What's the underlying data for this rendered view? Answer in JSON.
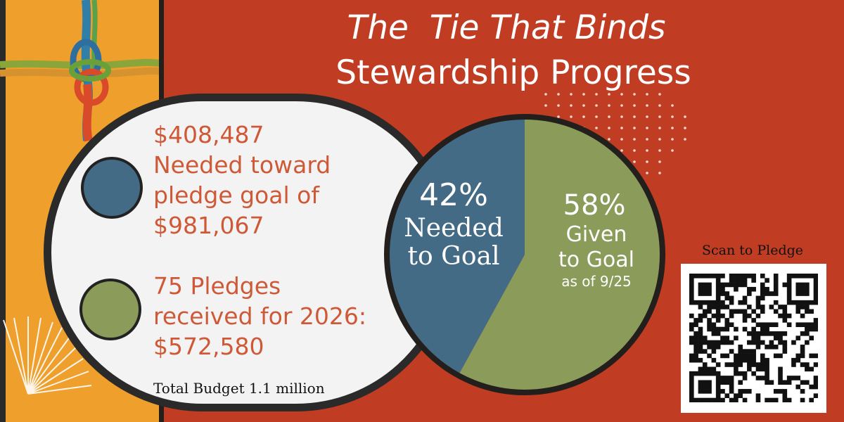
{
  "header": {
    "title_line1": "The  Tie That Binds",
    "title_line2": "Stewardship Progress"
  },
  "legend": {
    "needed": {
      "lines": [
        "$408,487",
        "Needed toward",
        "pledge goal of",
        "$981,067"
      ],
      "color": "#446b86"
    },
    "given": {
      "lines": [
        "75 Pledges",
        "received for 2026:",
        "$572,580"
      ],
      "color": "#8a9b5a"
    },
    "total_budget": "Total Budget 1.1 million"
  },
  "chart_data": {
    "type": "pie",
    "slices": [
      {
        "label": "Needed to Goal",
        "percent_label": "42%",
        "value": 42,
        "color": "#446b86"
      },
      {
        "label": "Given to Goal",
        "percent_label": "58%",
        "value": 58,
        "color": "#8a9b5a",
        "note": "as of 9/25"
      }
    ]
  },
  "pie_labels": {
    "needed_percent": "42%",
    "needed_caption_line1": "Needed",
    "needed_caption_line2": "to Goal",
    "given_percent": "58%",
    "given_caption_line1": "Given",
    "given_caption_line2": "to Goal",
    "as_of": "as of 9/25"
  },
  "qr": {
    "label": "Scan to Pledge"
  },
  "colors": {
    "background": "#c03c22",
    "accent_orange": "#ef9f2c",
    "legend_text": "#cf5937",
    "needed": "#446b86",
    "given": "#8a9b5a"
  }
}
